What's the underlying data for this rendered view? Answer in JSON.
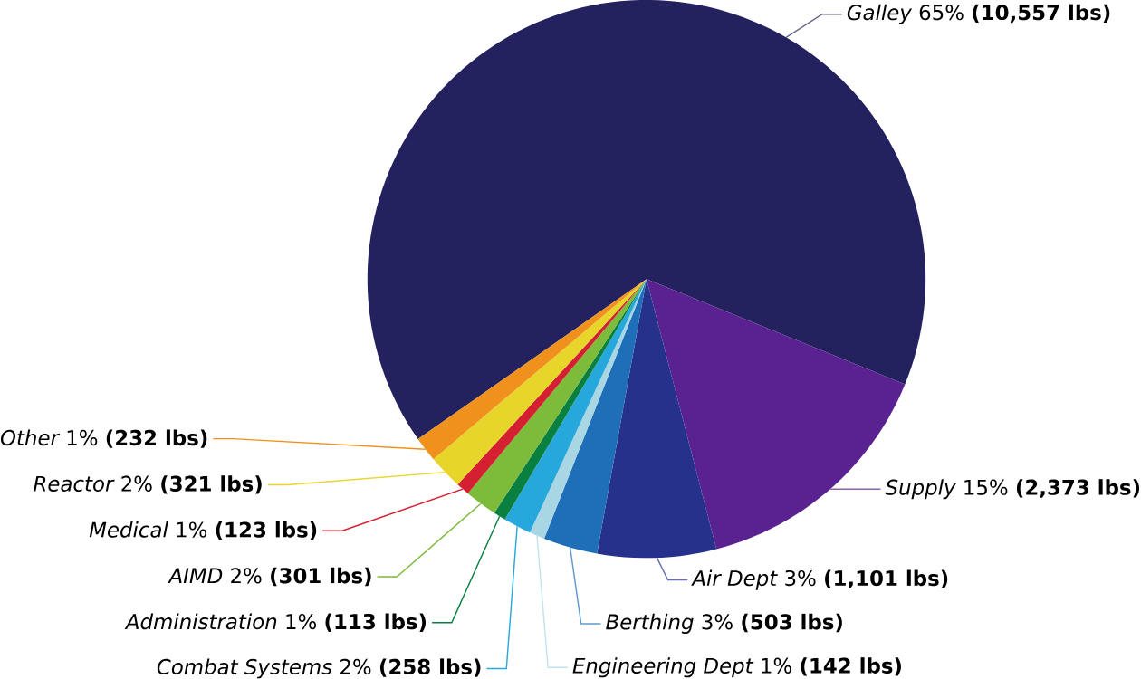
{
  "chart_data": {
    "type": "pie",
    "categories": [
      "Galley",
      "Supply",
      "Air Dept",
      "Berthing",
      "Engineering Dept",
      "Combat Systems",
      "Administration",
      "AIMD",
      "Medical",
      "Reactor",
      "Other"
    ],
    "values": [
      10557,
      2373,
      1101,
      503,
      142,
      258,
      113,
      301,
      123,
      321,
      232
    ],
    "value_labels": [
      "65% **(10,557 lbs)**",
      "15% **(2,373 lbs)**",
      "3% **(1,101 lbs)**",
      "3% **(503 lbs)**",
      "1% **(142 lbs)**",
      "2% **(258 lbs)**",
      "1% **(113 lbs)**",
      "2% **(301 lbs)**",
      "1% **(123 lbs)**",
      "2% **(321 lbs)**",
      "1% **(232 lbs)**"
    ],
    "colors": [
      "#23215e",
      "#5a2290",
      "#25318a",
      "#1f6fb8",
      "#a9d6e3",
      "#27a8dc",
      "#0a8040",
      "#7dbb3a",
      "#d42030",
      "#e8d52a",
      "#f0911e"
    ]
  }
}
